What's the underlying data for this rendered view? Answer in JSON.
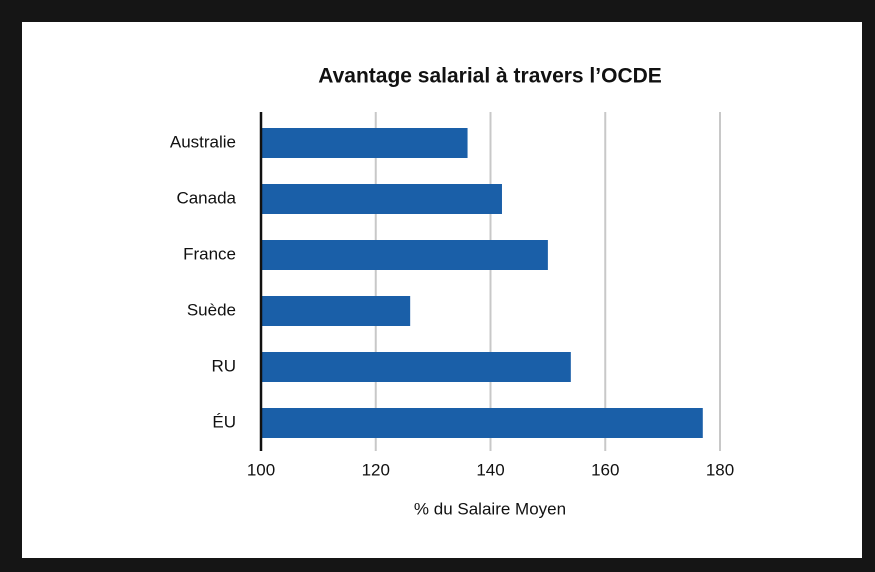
{
  "chart_data": {
    "type": "bar",
    "orientation": "horizontal",
    "title": "Avantage salarial à travers l’OCDE",
    "x_label": "% du Salaire Moyen",
    "categories": [
      "Australie",
      "Canada",
      "France",
      "Suède",
      "RU",
      "ÉU"
    ],
    "values": [
      136,
      142,
      150,
      126,
      154,
      177
    ],
    "color": "#1a5fa8",
    "xlim": [
      100,
      180
    ],
    "xticks": [
      100,
      120,
      140,
      160,
      180
    ],
    "grid": true
  }
}
